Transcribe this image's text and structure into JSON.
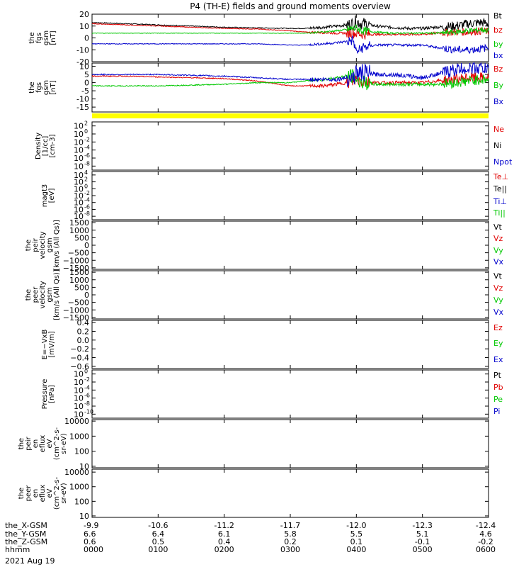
{
  "title": "P4 (TH-E) fields and ground moments overview",
  "date_label": "2021 Aug 19",
  "colors": {
    "black": "#000000",
    "red": "#e00000",
    "green": "#00c800",
    "blue": "#0000cc",
    "yellow": "#ffff00"
  },
  "chart_data": [
    {
      "type": "line",
      "panel": "fgs_gsm",
      "ylabel": [
        "the",
        "fgs",
        "gsm",
        "[nT]"
      ],
      "ylim": [
        -20,
        20
      ],
      "yticks": [
        "20",
        "10",
        "0",
        "-10",
        "-20"
      ],
      "ytick_values": [
        20,
        10,
        0,
        -10,
        -20
      ],
      "x_hours": [
        0,
        0.5,
        1,
        1.5,
        2,
        2.5,
        3,
        3.2,
        3.5,
        3.7,
        3.85,
        3.95,
        4.0,
        4.1,
        4.3,
        4.5,
        4.8,
        5.0,
        5.2,
        5.5,
        5.7,
        5.9,
        6.0
      ],
      "series": [
        {
          "name": "Bt",
          "color": "black",
          "noise": 2.5,
          "values": [
            13,
            12,
            11,
            10,
            9,
            8.5,
            8,
            8,
            9,
            10,
            11,
            12,
            14,
            12,
            10,
            9,
            8,
            8,
            9,
            10,
            12,
            13,
            12
          ]
        },
        {
          "name": "bz",
          "color": "red",
          "noise": 2,
          "values": [
            12,
            11,
            10,
            9,
            8,
            7.5,
            6,
            5,
            4.5,
            4,
            4,
            4,
            4,
            3,
            3,
            3,
            3,
            3,
            4,
            5,
            5,
            6,
            5
          ]
        },
        {
          "name": "by",
          "color": "green",
          "noise": 1.5,
          "values": [
            4,
            4,
            4,
            4,
            4,
            4,
            4,
            4,
            5,
            6,
            7,
            8,
            8,
            6,
            5,
            4,
            4,
            4,
            4,
            5,
            6,
            7,
            6
          ]
        },
        {
          "name": "bx",
          "color": "blue",
          "noise": 2,
          "values": [
            -5,
            -5,
            -5,
            -5,
            -5,
            -5,
            -6,
            -6,
            -5,
            -4,
            -3,
            -2,
            -12,
            -8,
            -6,
            -6,
            -6,
            -6,
            -8,
            -10,
            -10,
            -9,
            -8
          ]
        }
      ]
    },
    {
      "type": "line",
      "panel": "fgs_dsl",
      "ylabel": [
        "the",
        "fgs",
        "gsm",
        "[nT]"
      ],
      "ylim": [
        -18,
        12
      ],
      "yticks": [
        "10",
        "5",
        "0",
        "-5",
        "-10",
        "-15"
      ],
      "ytick_values": [
        10,
        5,
        0,
        -5,
        -10,
        -15
      ],
      "x_hours": [
        0,
        0.5,
        1,
        1.5,
        2,
        2.5,
        3,
        3.2,
        3.5,
        3.7,
        3.85,
        3.95,
        4.0,
        4.1,
        4.3,
        4.5,
        4.8,
        5.0,
        5.2,
        5.5,
        5.7,
        5.9,
        6.0
      ],
      "series": [
        {
          "name": "Bz",
          "color": "red",
          "noise": 2,
          "values": [
            4,
            4,
            3.5,
            3,
            2.5,
            1,
            -2,
            -2,
            -2,
            -1,
            0,
            1,
            2,
            1,
            0,
            0,
            0,
            0,
            1,
            2,
            3,
            3,
            3
          ]
        },
        {
          "name": "By",
          "color": "green",
          "noise": 2,
          "values": [
            -2,
            -2,
            -2,
            -1.5,
            -1,
            0,
            0,
            1,
            2,
            3,
            4,
            4,
            2,
            0,
            -1,
            -1,
            -1,
            -1,
            -1,
            0,
            1,
            2,
            2
          ]
        },
        {
          "name": "Bx",
          "color": "blue",
          "noise": 2.5,
          "values": [
            5,
            5,
            5,
            4.5,
            4,
            3,
            2,
            2,
            2,
            2,
            3,
            3,
            6,
            6,
            5,
            5,
            4,
            3,
            5,
            8,
            9,
            9,
            8
          ]
        }
      ]
    },
    {
      "type": "line",
      "panel": "density",
      "ylabel": [
        "Density",
        "[1/cc]",
        "[cm-3]"
      ],
      "scale": "log",
      "ylim_exp": [
        -9,
        3
      ],
      "yticks": [
        "10",
        "10",
        "10",
        "10",
        "10",
        "10"
      ],
      "ytick_exp": [
        "2",
        "0",
        "-2",
        "-4",
        "-6",
        "-8"
      ],
      "ytick_values": [
        2,
        0,
        -2,
        -4,
        -6,
        -8
      ],
      "series": [
        {
          "name": "Ne",
          "color": "red"
        },
        {
          "name": "Ni",
          "color": "black"
        },
        {
          "name": "Npot",
          "color": "blue"
        }
      ]
    },
    {
      "type": "line",
      "panel": "temperature",
      "ylabel": [
        "magt3",
        "[eV]"
      ],
      "scale": "log",
      "ylim_exp": [
        -9,
        5
      ],
      "yticks": [
        "10",
        "10",
        "10",
        "10",
        "10",
        "10",
        "10"
      ],
      "ytick_exp": [
        "4",
        "2",
        "0",
        "-2",
        "-4",
        "-6",
        "-8"
      ],
      "ytick_values": [
        4,
        2,
        0,
        -2,
        -4,
        -6,
        -8
      ],
      "series": [
        {
          "name": "Te⊥",
          "color": "red"
        },
        {
          "name": "Te||",
          "color": "black"
        },
        {
          "name": "Ti⊥",
          "color": "blue"
        },
        {
          "name": "Ti||",
          "color": "green"
        }
      ]
    },
    {
      "type": "line",
      "panel": "peir_velocity",
      "ylabel": [
        "the",
        "peir",
        "velocity",
        "gsm",
        "[km/s (All Qs)]"
      ],
      "ylim": [
        -1600,
        1600
      ],
      "yticks": [
        "1500",
        "1000",
        "500",
        "0",
        "−500",
        "−1000",
        "−1500"
      ],
      "ytick_values": [
        1500,
        1000,
        500,
        0,
        -500,
        -1000,
        -1500
      ],
      "series": [
        {
          "name": "Vt",
          "color": "black"
        },
        {
          "name": "Vz",
          "color": "red"
        },
        {
          "name": "Vy",
          "color": "green"
        },
        {
          "name": "Vx",
          "color": "blue"
        }
      ]
    },
    {
      "type": "line",
      "panel": "peer_velocity",
      "ylabel": [
        "the",
        "peer",
        "velocity",
        "gsm",
        "[km/s (All Qs)]"
      ],
      "ylim": [
        -1600,
        1600
      ],
      "yticks": [
        "1500",
        "1000",
        "500",
        "0",
        "−500",
        "−1000",
        "−1500"
      ],
      "ytick_values": [
        1500,
        1000,
        500,
        0,
        -500,
        -1000,
        -1500
      ],
      "series": [
        {
          "name": "Vt",
          "color": "black"
        },
        {
          "name": "Vz",
          "color": "red"
        },
        {
          "name": "Vy",
          "color": "green"
        },
        {
          "name": "Vx",
          "color": "blue"
        }
      ]
    },
    {
      "type": "line",
      "panel": "efield",
      "ylabel": [
        "E=−VxB",
        "[mV/m]"
      ],
      "ylim": [
        -0.65,
        0.45
      ],
      "yticks": [
        "0.4",
        "0.2",
        "0.0",
        "−0.2",
        "−0.4",
        "−0.6"
      ],
      "ytick_values": [
        0.4,
        0.2,
        0.0,
        -0.2,
        -0.4,
        -0.6
      ],
      "series": [
        {
          "name": "Ez",
          "color": "red"
        },
        {
          "name": "Ey",
          "color": "green"
        },
        {
          "name": "Ex",
          "color": "blue"
        }
      ]
    },
    {
      "type": "line",
      "panel": "pressure",
      "ylabel": [
        "Pressure",
        "[nPa]"
      ],
      "scale": "log",
      "ylim_exp": [
        -11,
        1
      ],
      "yticks": [
        "10",
        "10",
        "10",
        "10",
        "10",
        "10"
      ],
      "ytick_exp": [
        "0",
        "-2",
        "-4",
        "-6",
        "-8",
        "-10"
      ],
      "ytick_values": [
        0,
        -2,
        -4,
        -6,
        -8,
        -10
      ],
      "series": [
        {
          "name": "Pt",
          "color": "black"
        },
        {
          "name": "Pb",
          "color": "red"
        },
        {
          "name": "Pe",
          "color": "green"
        },
        {
          "name": "Pi",
          "color": "blue"
        }
      ]
    },
    {
      "type": "heatmap",
      "panel": "peir_en_eflux",
      "ylabel": [
        "the",
        "peir",
        "en",
        "eflux",
        "eV",
        "(cm^2-s-",
        "sr-eV)"
      ],
      "scale": "log",
      "ylim_exp": [
        0.9,
        4.1
      ],
      "yticks": [
        "10000",
        "1000",
        "100",
        "10"
      ],
      "ytick_values": [
        4,
        3,
        2,
        1
      ]
    },
    {
      "type": "heatmap",
      "panel": "peer_en_eflux",
      "ylabel": [
        "the",
        "peer",
        "en",
        "eflux",
        "eV",
        "(cm^2-s-",
        "sr-eV)"
      ],
      "scale": "log",
      "ylim_exp": [
        0.9,
        4.2
      ],
      "yticks": [
        "10000",
        "1000",
        "100",
        "10"
      ],
      "ytick_values": [
        4,
        3,
        2,
        1
      ]
    }
  ],
  "xaxis": {
    "rows": [
      {
        "label": "the_X-GSM",
        "values": [
          "-9.9",
          "-10.6",
          "-11.2",
          "-11.7",
          "-12.0",
          "-12.3",
          "-12.4"
        ]
      },
      {
        "label": "the_Y-GSM",
        "values": [
          "6.6",
          "6.4",
          "6.1",
          "5.8",
          "5.5",
          "5.1",
          "4.6"
        ]
      },
      {
        "label": "the_Z-GSM",
        "values": [
          "0.6",
          "0.5",
          "0.4",
          "0.2",
          "0.1",
          "-0.1",
          "-0.2"
        ]
      },
      {
        "label": "hhmm",
        "values": [
          "0000",
          "0100",
          "0200",
          "0300",
          "0400",
          "0500",
          "0600"
        ]
      }
    ]
  }
}
